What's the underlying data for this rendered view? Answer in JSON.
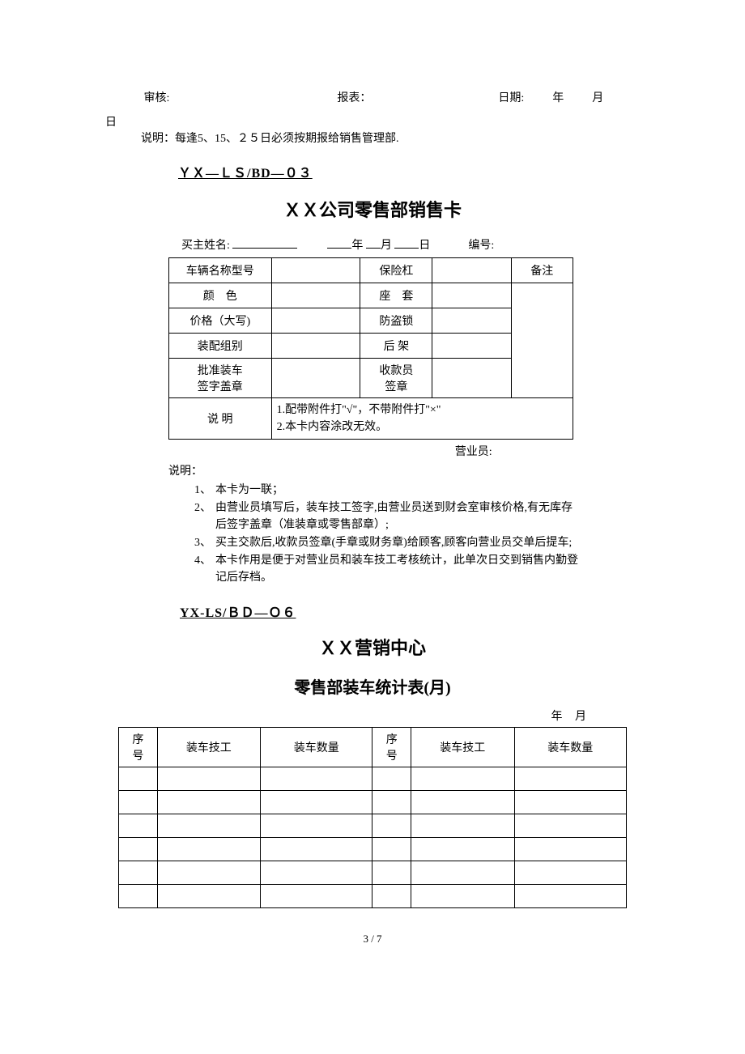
{
  "signature_row": {
    "audit_label": "审核:",
    "report_label": "报表：",
    "date_label": "日期:",
    "year_label": "年",
    "month_label": "月",
    "day_label": "日"
  },
  "main_note": "说明：每逢5、15、２５日必须按期报给销售管理部.",
  "section1": {
    "form_code": "ＹＸ—ＬＳ/BD—０３",
    "title": "ＸＸ公司零售部销售卡",
    "buyer_line": {
      "buyer_label": "买主姓名:",
      "year_label": "年",
      "month_label": "月",
      "day_label": "日",
      "serial_label": "编号:"
    },
    "table": {
      "rows": [
        {
          "l": "车辆名称型号",
          "m": "保险杠",
          "r": "备注"
        },
        {
          "l": "颜　色",
          "m": "座　套",
          "r": ""
        },
        {
          "l": "价格（大写)",
          "m": "防盗锁",
          "r": ""
        },
        {
          "l": "装配组别",
          "m": "后 架",
          "r": ""
        },
        {
          "l": "批准装车\n签字盖章",
          "m": "收款员\n签章",
          "r": ""
        }
      ],
      "note_label": "说 明",
      "note_body": "1.配带附件打\"√\"，不带附件打\"×\"\n2.本卡内容涂改无效。"
    },
    "operator_label": "营业员:",
    "explain_head": "说明：",
    "explain_items": [
      "本卡为一联；",
      "由营业员填写后，装车技工签字,由营业员送到财会室审核价格,有无库存后签字盖章（准装章或零售部章）;",
      "买主交款后,收款员签章(手章或财务章)给顾客,顾客向营业员交单后提车;",
      "本卡作用是便于对营业员和装车技工考核统计，此单次日交到销售内勤登记后存档。"
    ]
  },
  "section2": {
    "form_code": "YX-LS/ＢＤ—Ｏ６",
    "title": "ＸＸ营销中心",
    "subtitle": "零售部装车统计表(月)",
    "date_line": {
      "year": "年",
      "month": "月"
    },
    "headers": {
      "seq": "序号",
      "tech": "装车技工",
      "qty": "装车数量"
    },
    "empty_rows": 6
  },
  "page_number": "3 / 7"
}
